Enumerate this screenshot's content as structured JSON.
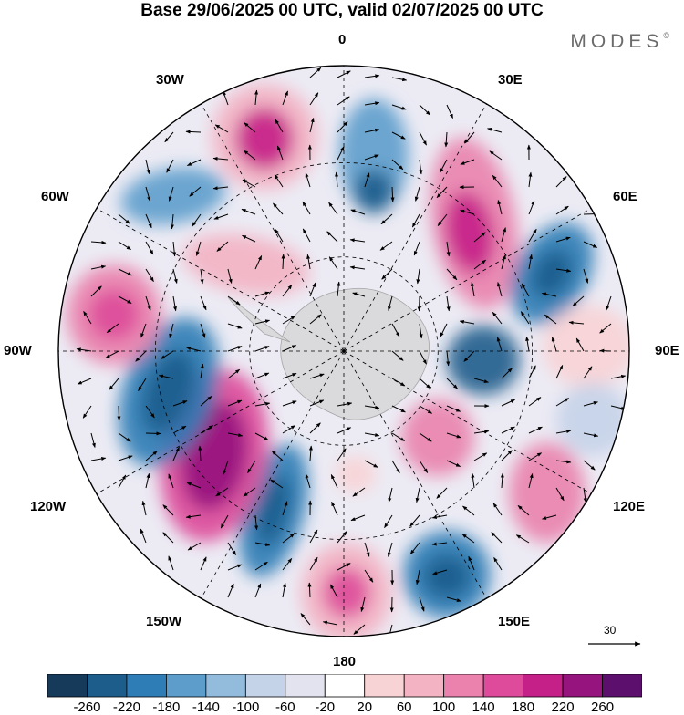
{
  "title": "Base 29/06/2025 00 UTC, valid 02/07/2025 00 UTC",
  "brand": {
    "text": "MODES",
    "mark": "©"
  },
  "map": {
    "projection": "south polar stereographic",
    "longitude_labels": [
      "0",
      "30E",
      "60E",
      "90E",
      "120E",
      "150E",
      "180",
      "150W",
      "120W",
      "90W",
      "60W",
      "30W"
    ]
  },
  "reference_vector": {
    "label": "30"
  },
  "colorbar": {
    "colors": [
      "#163a59",
      "#1d5d8c",
      "#2f7db6",
      "#5c9dcc",
      "#93bbdc",
      "#c5d3e9",
      "#e3e3f0",
      "#ffffff",
      "#f8d3d5",
      "#f3b3c3",
      "#ea82ad",
      "#dd4b9a",
      "#c51f88",
      "#96147d",
      "#5d0f6e"
    ],
    "tick_labels": [
      "-260",
      "-220",
      "-180",
      "-140",
      "-100",
      "-60",
      "-20",
      "20",
      "60",
      "100",
      "140",
      "180",
      "220",
      "260"
    ]
  }
}
